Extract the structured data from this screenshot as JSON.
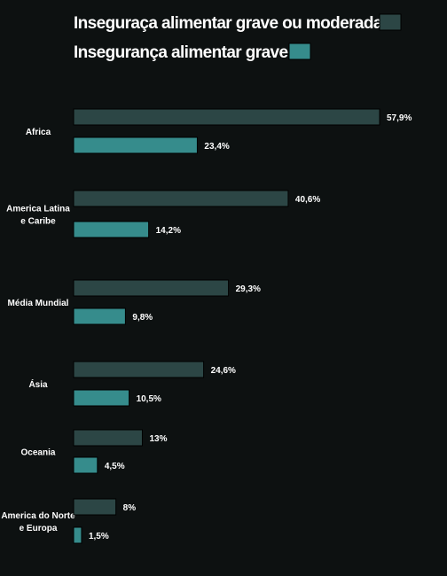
{
  "chart_data": {
    "type": "bar",
    "orientation": "horizontal",
    "categories": [
      [
        "Africa"
      ],
      [
        "America Latina",
        "e Caribe"
      ],
      [
        "Média Mundial"
      ],
      [
        "Ásia"
      ],
      [
        "Oceania"
      ],
      [
        "America do Norte",
        "e Europa"
      ]
    ],
    "series": [
      {
        "name": "Inseguraça alimentar grave ou moderada",
        "color": "#2c4645",
        "values": [
          57.9,
          40.6,
          29.3,
          24.6,
          13,
          8
        ],
        "labels": [
          "57,9%",
          "40,6%",
          "29,3%",
          "24,6%",
          "13%",
          "8%"
        ]
      },
      {
        "name": "Insegurança alimentar grave",
        "color": "#368c8c",
        "values": [
          23.4,
          14.2,
          9.8,
          10.5,
          4.5,
          1.5
        ],
        "labels": [
          "23,4%",
          "14,2%",
          "9,8%",
          "10,5%",
          "4,5%",
          "1,5%"
        ]
      }
    ],
    "legend_position": "top",
    "xlim": [
      0,
      60
    ],
    "grid": false
  }
}
